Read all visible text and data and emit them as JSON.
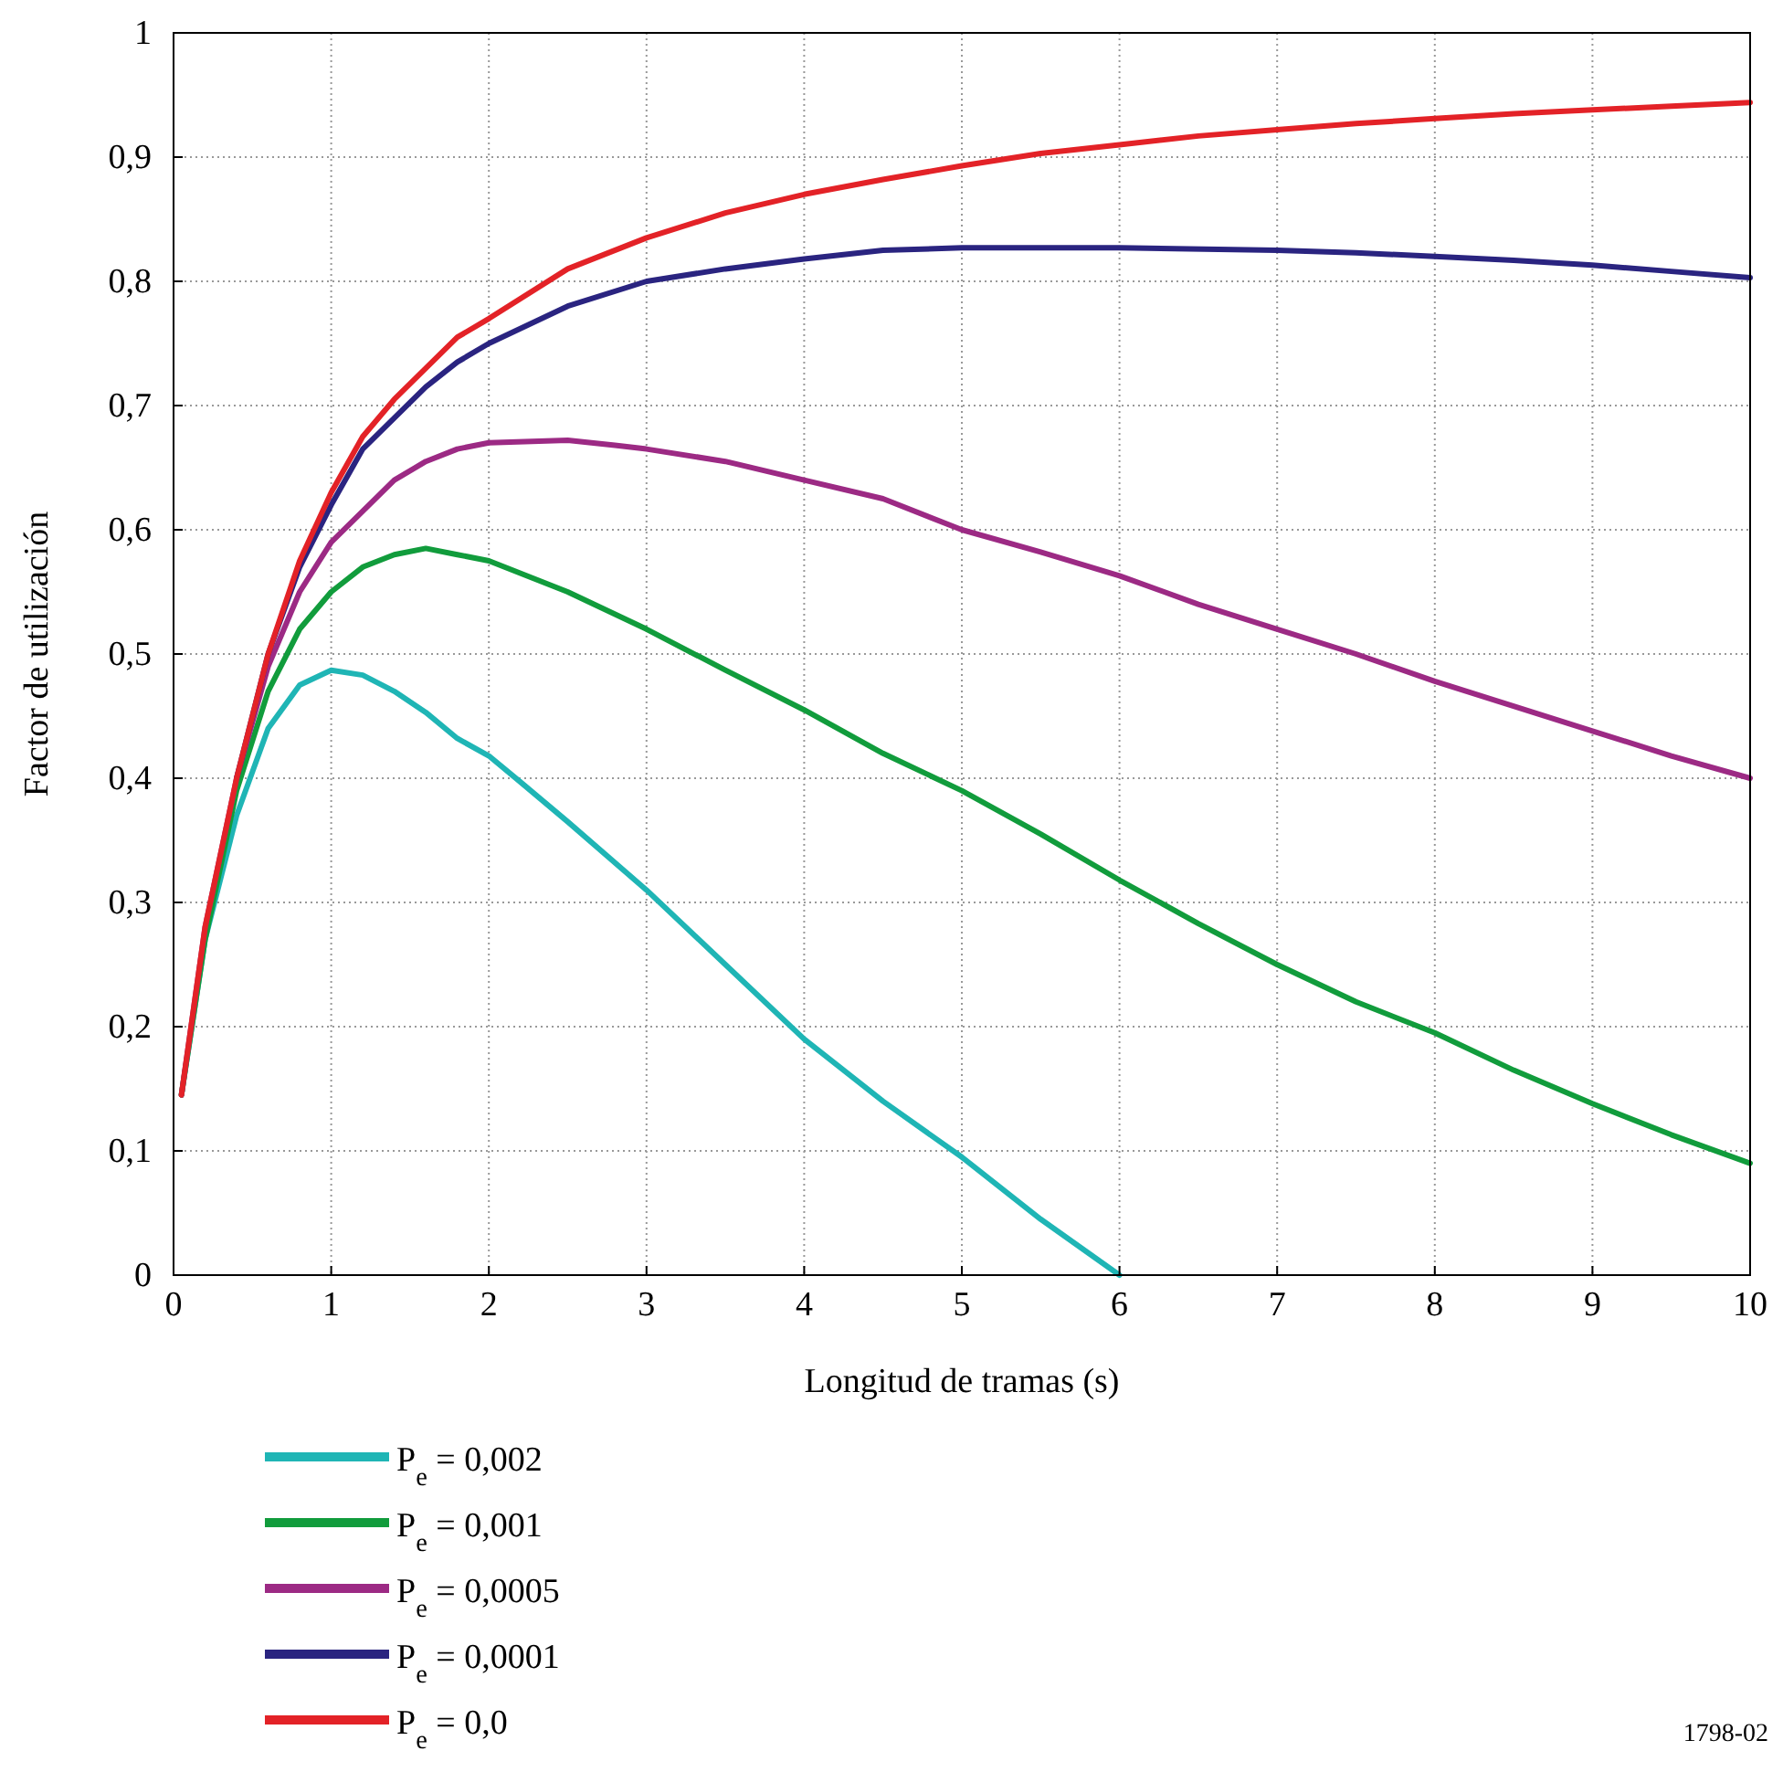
{
  "chart_data": {
    "type": "line",
    "xlabel": "Longitud de tramas (s)",
    "ylabel": "Factor de utilización",
    "xlim": [
      0,
      10
    ],
    "ylim": [
      0,
      1
    ],
    "xticks": [
      0,
      1,
      2,
      3,
      4,
      5,
      6,
      7,
      8,
      9,
      10
    ],
    "yticks": [
      0,
      {
        "value": 0.1,
        "label": "0,1"
      },
      {
        "value": 0.2,
        "label": "0,2"
      },
      {
        "value": 0.3,
        "label": "0,3"
      },
      {
        "value": 0.4,
        "label": "0,4"
      },
      {
        "value": 0.5,
        "label": "0,5"
      },
      {
        "value": 0.6,
        "label": "0,6"
      },
      {
        "value": 0.7,
        "label": "0,7"
      },
      {
        "value": 0.8,
        "label": "0,8"
      },
      {
        "value": 0.9,
        "label": "0,9"
      },
      1
    ],
    "grid": true,
    "legend": "bottom left",
    "line_style": "solid",
    "annotations": [
      "1798-02"
    ],
    "series": [
      {
        "name": "P$_{e}$ = 0,002",
        "color": "#1fb5b5",
        "x": [
          0.05,
          0.2,
          0.4,
          0.6,
          0.8,
          1.0,
          1.2,
          1.4,
          1.6,
          1.8,
          2.0,
          2.2,
          2.5,
          3.0,
          3.5,
          4.0,
          4.5,
          5.0,
          5.5,
          6.0
        ],
        "values": [
          0.145,
          0.27,
          0.37,
          0.44,
          0.475,
          0.487,
          0.483,
          0.47,
          0.453,
          0.432,
          0.418,
          0.397,
          0.365,
          0.31,
          0.25,
          0.19,
          0.14,
          0.095,
          0.045,
          0
        ]
      },
      {
        "name": "P$_{e}$ = 0,001",
        "color": "#119c3c",
        "x": [
          0.05,
          0.2,
          0.4,
          0.6,
          0.8,
          1.0,
          1.2,
          1.4,
          1.6,
          1.8,
          2.0,
          2.5,
          3.0,
          3.5,
          4.0,
          4.5,
          5.0,
          5.5,
          6.0,
          6.5,
          7.0,
          7.5,
          8.0,
          8.5,
          9.0,
          9.5,
          10.0
        ],
        "values": [
          0.145,
          0.27,
          0.39,
          0.47,
          0.52,
          0.55,
          0.57,
          0.58,
          0.585,
          0.58,
          0.575,
          0.55,
          0.52,
          0.487,
          0.455,
          0.42,
          0.39,
          0.355,
          0.318,
          0.283,
          0.25,
          0.22,
          0.195,
          0.165,
          0.138,
          0.113,
          0.09
        ]
      },
      {
        "name": "P$_{e}$ = 0,0005",
        "color": "#9c2a84",
        "x": [
          0.05,
          0.2,
          0.4,
          0.6,
          0.8,
          1.0,
          1.2,
          1.4,
          1.6,
          1.8,
          2.0,
          2.5,
          2.8,
          3.0,
          3.5,
          4.0,
          4.5,
          5.0,
          5.5,
          6.0,
          6.5,
          7.0,
          7.5,
          8.0,
          8.5,
          9.0,
          9.5,
          10.0
        ],
        "values": [
          0.145,
          0.28,
          0.4,
          0.49,
          0.55,
          0.59,
          0.615,
          0.64,
          0.655,
          0.665,
          0.67,
          0.672,
          0.668,
          0.665,
          0.655,
          0.64,
          0.625,
          0.6,
          0.582,
          0.563,
          0.54,
          0.52,
          0.5,
          0.478,
          0.458,
          0.438,
          0.418,
          0.4
        ]
      },
      {
        "name": "P$_{e}$ = 0,0001",
        "color": "#2a2480",
        "x": [
          0.4,
          0.6,
          0.8,
          1.0,
          1.2,
          1.4,
          1.6,
          1.8,
          2.0,
          2.5,
          3.0,
          3.5,
          4.0,
          4.5,
          5.0,
          6.0,
          7.0,
          7.5,
          8.0,
          8.5,
          9.0,
          9.5,
          10.0
        ],
        "values": [
          0.4,
          0.5,
          0.57,
          0.62,
          0.665,
          0.69,
          0.715,
          0.735,
          0.75,
          0.78,
          0.8,
          0.81,
          0.818,
          0.825,
          0.827,
          0.827,
          0.825,
          0.823,
          0.82,
          0.817,
          0.813,
          0.808,
          0.803
        ]
      },
      {
        "name": "P$_{e}$ = 0,0",
        "color": "#e32227",
        "x": [
          0.05,
          0.2,
          0.4,
          0.6,
          0.8,
          1.0,
          1.2,
          1.4,
          1.6,
          1.8,
          2.0,
          2.5,
          3.0,
          3.5,
          4.0,
          4.5,
          5.0,
          5.5,
          6.0,
          6.5,
          7.0,
          7.5,
          8.0,
          8.5,
          9.0,
          9.5,
          10.0
        ],
        "values": [
          0.145,
          0.28,
          0.4,
          0.5,
          0.575,
          0.63,
          0.675,
          0.705,
          0.73,
          0.755,
          0.77,
          0.81,
          0.835,
          0.855,
          0.87,
          0.882,
          0.893,
          0.903,
          0.91,
          0.917,
          0.922,
          0.927,
          0.931,
          0.935,
          0.938,
          0.941,
          0.944
        ]
      }
    ]
  }
}
